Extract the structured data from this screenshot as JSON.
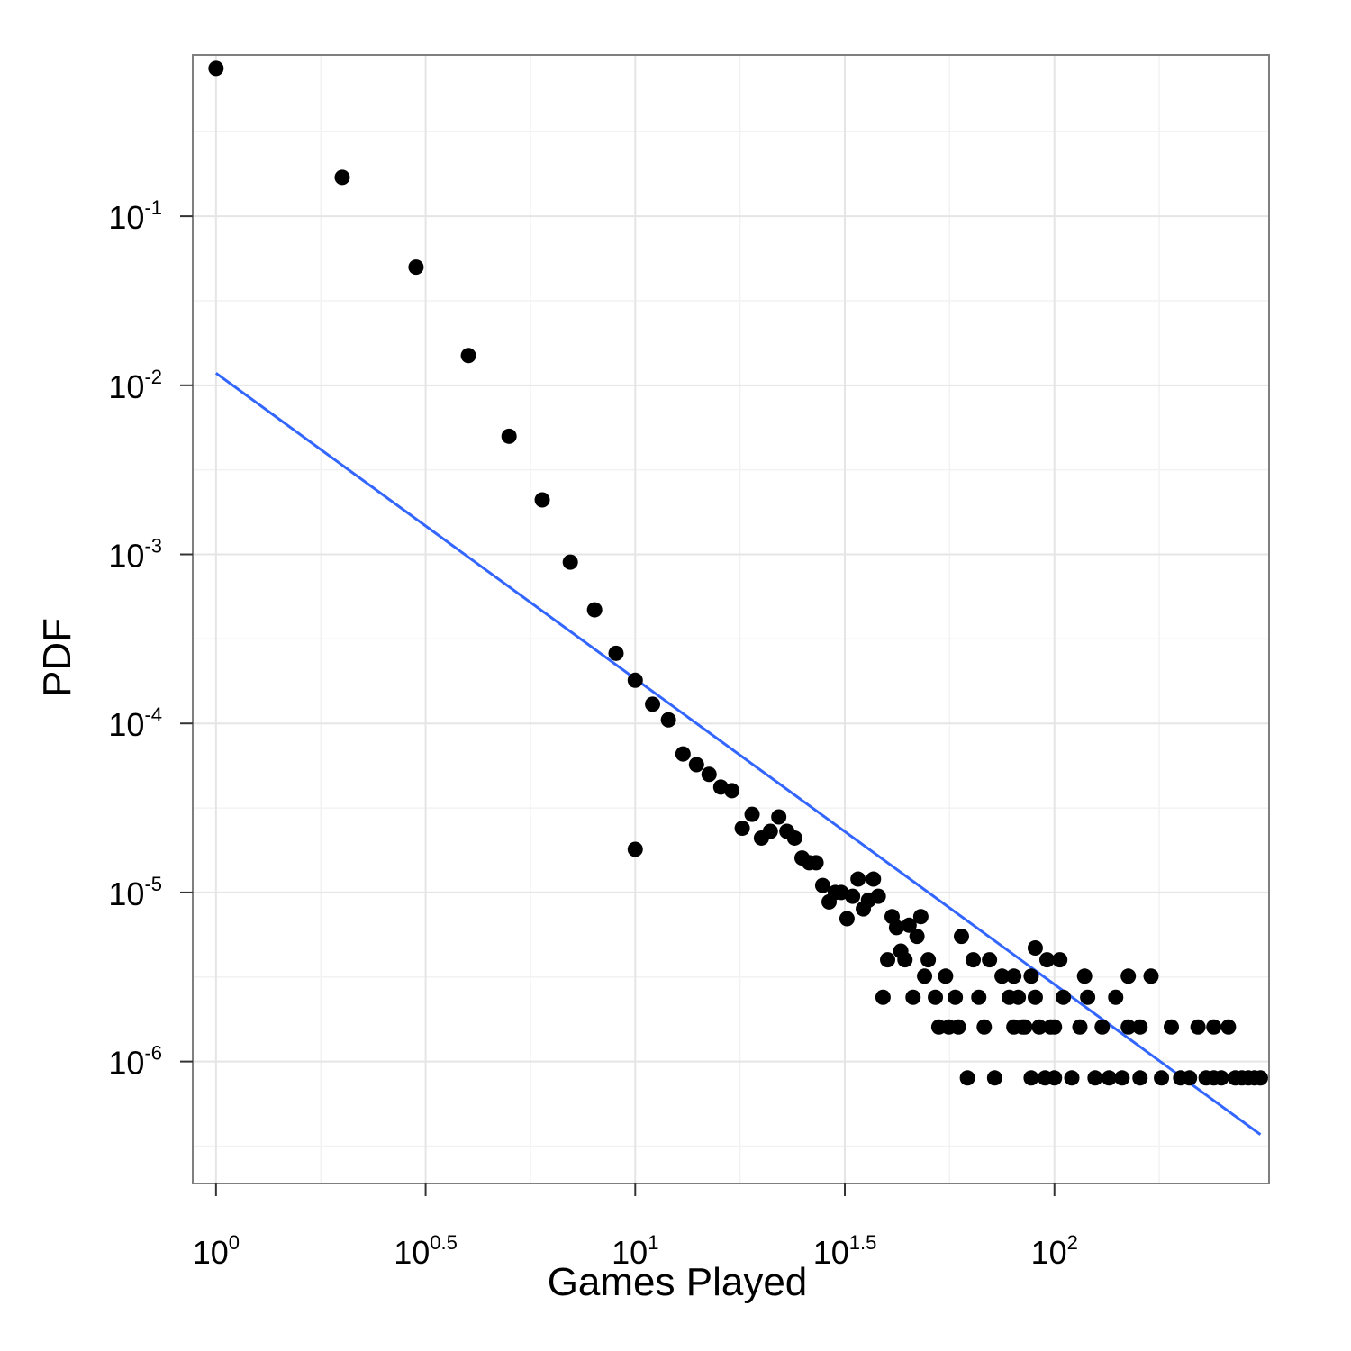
{
  "chart_data": {
    "type": "scatter",
    "xlabel": "Games Played",
    "ylabel": "PDF",
    "x_scale": "log10",
    "y_scale": "log10",
    "xlim": [
      0.88,
      325
    ],
    "ylim": [
      1.9e-07,
      0.9
    ],
    "grid": true,
    "x_ticks": [
      {
        "base": "10",
        "exp": "0",
        "value": 1
      },
      {
        "base": "10",
        "exp": "0.5",
        "value": 3.1623
      },
      {
        "base": "10",
        "exp": "1",
        "value": 10
      },
      {
        "base": "10",
        "exp": "1.5",
        "value": 31.623
      },
      {
        "base": "10",
        "exp": "2",
        "value": 100
      }
    ],
    "y_ticks": [
      {
        "base": "10",
        "exp": "-1",
        "value": 0.1
      },
      {
        "base": "10",
        "exp": "-2",
        "value": 0.01
      },
      {
        "base": "10",
        "exp": "-3",
        "value": 0.001
      },
      {
        "base": "10",
        "exp": "-4",
        "value": 0.0001
      },
      {
        "base": "10",
        "exp": "-5",
        "value": 1e-05
      },
      {
        "base": "10",
        "exp": "-6",
        "value": 1e-06
      }
    ],
    "point_color": "#000000",
    "line_color": "#3366ff",
    "grid_color": "#e5e5e5",
    "points": {
      "x": [
        1,
        2,
        3,
        4,
        5,
        6,
        7,
        8,
        9,
        10,
        11,
        12,
        13,
        14,
        15,
        16,
        17,
        18,
        19,
        20,
        21,
        22,
        23,
        24,
        25,
        26,
        27,
        28,
        29,
        30,
        31,
        32,
        33,
        34,
        35,
        36,
        37,
        38,
        39,
        40,
        41,
        42,
        43,
        44,
        45,
        46,
        47,
        48,
        49,
        50,
        52,
        53,
        55,
        56,
        58,
        59,
        60,
        62,
        64,
        66,
        68,
        70,
        72,
        75,
        78,
        80,
        82,
        85,
        88,
        90,
        92,
        95,
        98,
        100,
        105,
        110,
        115,
        120,
        125,
        130,
        135,
        140,
        145,
        150,
        160,
        170,
        180,
        190,
        200,
        210,
        220,
        230,
        240,
        250,
        260,
        270,
        280,
        290,
        300,
        310
      ],
      "y": [
        0.75,
        0.17,
        0.05,
        0.015,
        0.005,
        0.0021,
        0.0009,
        0.00047,
        0.00026,
        0.00018,
        0.00013,
        0.000105,
        6.6e-05,
        5.7e-05,
        5e-05,
        4.2e-05,
        4e-05,
        2.4e-05,
        2.9e-05,
        2.1e-05,
        2.3e-05,
        2.8e-05,
        2.3e-05,
        2.1e-05,
        1.6e-05,
        1.5e-05,
        1.5e-05,
        1.1e-05,
        8.8e-06,
        1e-05,
        1e-05,
        7e-06,
        9.5e-06,
        1.2e-05,
        8e-06,
        9e-06,
        1.2e-05,
        9.5e-06,
        2.4e-06,
        4e-06,
        7.2e-06,
        6.2e-06,
        4.5e-06,
        4e-06,
        6.4e-06,
        2.4e-06,
        5.5e-06,
        7.2e-06,
        3.2e-06,
        4e-06,
        2.4e-06,
        1.6e-06,
        3.2e-06,
        1.6e-06,
        2.4e-06,
        1.6e-06,
        5.5e-06,
        8e-07,
        4e-06,
        2.4e-06,
        1.6e-06,
        4e-06,
        8e-07,
        3.2e-06,
        2.4e-06,
        1.6e-06,
        2.4e-06,
        1.6e-06,
        8e-07,
        2.4e-06,
        1.6e-06,
        8e-07,
        1.6e-06,
        8e-07,
        2.4e-06,
        8e-07,
        1.6e-06,
        2.4e-06,
        8e-07,
        1.6e-06,
        8e-07,
        2.4e-06,
        8e-07,
        1.6e-06,
        8e-07,
        3.2e-06,
        8e-07,
        1.6e-06,
        8e-07,
        8e-07,
        1.6e-06,
        8e-07,
        8e-07,
        8e-07,
        1.6e-06,
        8e-07,
        8e-07,
        8e-07,
        8e-07,
        8e-07
      ],
      "extra": [
        {
          "x": 10,
          "y": 1.8e-05
        },
        {
          "x": 80,
          "y": 3.2e-06
        },
        {
          "x": 84,
          "y": 1.6e-06
        },
        {
          "x": 88,
          "y": 3.2e-06
        },
        {
          "x": 90,
          "y": 4.7e-06
        },
        {
          "x": 96,
          "y": 4e-06
        },
        {
          "x": 100,
          "y": 1.6e-06
        },
        {
          "x": 103,
          "y": 4e-06
        },
        {
          "x": 118,
          "y": 3.2e-06
        },
        {
          "x": 150,
          "y": 3.2e-06
        },
        {
          "x": 160,
          "y": 1.6e-06
        },
        {
          "x": 240,
          "y": 1.6e-06
        }
      ]
    },
    "fit_line": {
      "x": [
        1,
        310
      ],
      "y": [
        0.0118,
        3.7e-07
      ]
    }
  }
}
